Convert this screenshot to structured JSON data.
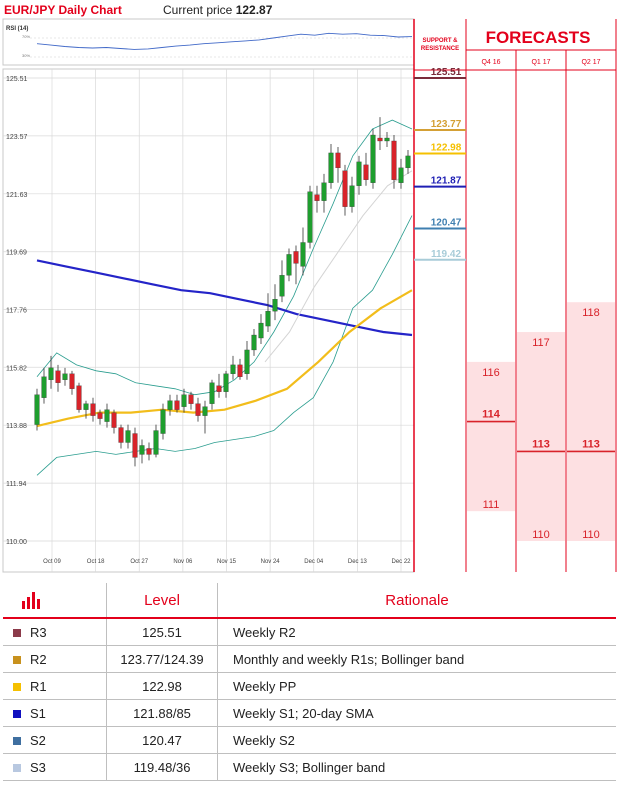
{
  "header": {
    "title": "EUR/JPY Daily Chart",
    "current_price_label": "Current price",
    "current_price": "122.87"
  },
  "rsi": {
    "label": "RSI (14)",
    "upper_label": "70%",
    "lower_label": "30%"
  },
  "panel": {
    "sr_label_1": "SUPPORT &",
    "sr_label_2": "RESISTANCE",
    "forecasts_title": "FORECASTS",
    "columns": [
      "Q4 16",
      "Q1 17",
      "Q2 17"
    ]
  },
  "levels": [
    {
      "id": "R3",
      "value": 125.51,
      "label": "125.51",
      "color": "#7b2c3b"
    },
    {
      "id": "R2",
      "value": 123.77,
      "label": "123.77",
      "color": "#d4a035"
    },
    {
      "id": "R1",
      "value": 122.98,
      "label": "122.98",
      "color": "#f5c000"
    },
    {
      "id": "S1",
      "value": 121.87,
      "label": "121.87",
      "color": "#1f1fb4"
    },
    {
      "id": "S2",
      "value": 120.47,
      "label": "120.47",
      "color": "#3f7fb0"
    },
    {
      "id": "S3",
      "value": 119.42,
      "label": "119.42",
      "color": "#a8ccd8"
    }
  ],
  "forecasts": [
    {
      "column": "Q4 16",
      "high": "116",
      "mid": "114",
      "low": "111",
      "high_v": 116.0,
      "mid_v": 114.0,
      "low_v": 111.0
    },
    {
      "column": "Q1 17",
      "high": "117",
      "mid": "113",
      "low": "110",
      "high_v": 117.0,
      "mid_v": 113.0,
      "low_v": 110.0
    },
    {
      "column": "Q2 17",
      "high": "118",
      "mid": "113",
      "low": "110",
      "high_v": 118.0,
      "mid_v": 113.0,
      "low_v": 110.0
    }
  ],
  "table": {
    "headers": {
      "level": "Level",
      "rationale": "Rationale"
    },
    "rows": [
      {
        "id": "R3",
        "level": "125.51",
        "rationale": "Weekly R2",
        "color": "#8b3a4a"
      },
      {
        "id": "R2",
        "level": "123.77/124.39",
        "rationale": "Monthly and weekly R1s; Bollinger band",
        "color": "#c8911d"
      },
      {
        "id": "R1",
        "level": "122.98",
        "rationale": "Weekly PP",
        "color": "#f5c000"
      },
      {
        "id": "S1",
        "level": "121.88/85",
        "rationale": "Weekly S1; 20-day SMA",
        "color": "#1010c0"
      },
      {
        "id": "S2",
        "level": "120.47",
        "rationale": "Weekly S2",
        "color": "#3f6fa0"
      },
      {
        "id": "S3",
        "level": "119.48/36",
        "rationale": "Weekly S3; Bollinger band",
        "color": "#b8c8e0"
      }
    ]
  },
  "chart_data": {
    "type": "candlestick",
    "x_tick_labels": [
      "Oct 09",
      "Oct 18",
      "Oct 27",
      "Nov 06",
      "Nov 15",
      "Nov 24",
      "Dec 04",
      "Dec 13",
      "Dec 22"
    ],
    "y_tick_labels": [
      "125.51",
      "123.57",
      "121.63",
      "119.69",
      "117.76",
      "115.82",
      "113.88",
      "111.94",
      "110.00"
    ],
    "ylim": [
      110.0,
      125.51
    ],
    "grid": true,
    "candles": [
      {
        "o": 113.9,
        "c": 114.9,
        "h": 115.1,
        "l": 113.7
      },
      {
        "o": 114.8,
        "c": 115.5,
        "h": 115.8,
        "l": 114.6
      },
      {
        "o": 115.4,
        "c": 115.8,
        "h": 116.2,
        "l": 115.1
      },
      {
        "o": 115.7,
        "c": 115.3,
        "h": 115.9,
        "l": 115.0
      },
      {
        "o": 115.4,
        "c": 115.6,
        "h": 115.8,
        "l": 115.2
      },
      {
        "o": 115.6,
        "c": 115.1,
        "h": 115.7,
        "l": 114.9
      },
      {
        "o": 115.2,
        "c": 114.4,
        "h": 115.3,
        "l": 114.3
      },
      {
        "o": 114.4,
        "c": 114.6,
        "h": 114.7,
        "l": 114.1
      },
      {
        "o": 114.6,
        "c": 114.2,
        "h": 114.8,
        "l": 114.0
      },
      {
        "o": 114.3,
        "c": 114.1,
        "h": 114.4,
        "l": 113.9
      },
      {
        "o": 114.0,
        "c": 114.4,
        "h": 114.6,
        "l": 113.8
      },
      {
        "o": 114.3,
        "c": 113.8,
        "h": 114.4,
        "l": 113.6
      },
      {
        "o": 113.8,
        "c": 113.3,
        "h": 113.9,
        "l": 113.1
      },
      {
        "o": 113.3,
        "c": 113.7,
        "h": 113.9,
        "l": 113.1
      },
      {
        "o": 113.6,
        "c": 112.8,
        "h": 113.8,
        "l": 112.5
      },
      {
        "o": 112.9,
        "c": 113.2,
        "h": 113.4,
        "l": 112.6
      },
      {
        "o": 113.1,
        "c": 112.9,
        "h": 113.3,
        "l": 112.7
      },
      {
        "o": 112.9,
        "c": 113.7,
        "h": 113.9,
        "l": 112.8
      },
      {
        "o": 113.6,
        "c": 114.4,
        "h": 114.6,
        "l": 113.4
      },
      {
        "o": 114.4,
        "c": 114.7,
        "h": 114.9,
        "l": 114.2
      },
      {
        "o": 114.7,
        "c": 114.4,
        "h": 114.9,
        "l": 114.3
      },
      {
        "o": 114.5,
        "c": 114.9,
        "h": 115.1,
        "l": 114.3
      },
      {
        "o": 114.9,
        "c": 114.6,
        "h": 115.0,
        "l": 114.4
      },
      {
        "o": 114.6,
        "c": 114.2,
        "h": 114.8,
        "l": 114.0
      },
      {
        "o": 114.2,
        "c": 114.5,
        "h": 114.7,
        "l": 113.6
      },
      {
        "o": 114.6,
        "c": 115.3,
        "h": 115.4,
        "l": 114.4
      },
      {
        "o": 115.2,
        "c": 115.0,
        "h": 115.6,
        "l": 114.8
      },
      {
        "o": 115.0,
        "c": 115.6,
        "h": 115.7,
        "l": 114.8
      },
      {
        "o": 115.6,
        "c": 115.9,
        "h": 116.2,
        "l": 115.4
      },
      {
        "o": 115.9,
        "c": 115.5,
        "h": 116.1,
        "l": 115.4
      },
      {
        "o": 115.6,
        "c": 116.4,
        "h": 116.7,
        "l": 115.4
      },
      {
        "o": 116.4,
        "c": 116.9,
        "h": 117.1,
        "l": 116.2
      },
      {
        "o": 116.8,
        "c": 117.3,
        "h": 117.6,
        "l": 116.6
      },
      {
        "o": 117.2,
        "c": 117.7,
        "h": 118.3,
        "l": 117.0
      },
      {
        "o": 117.7,
        "c": 118.1,
        "h": 118.6,
        "l": 117.4
      },
      {
        "o": 118.2,
        "c": 118.9,
        "h": 119.4,
        "l": 118.0
      },
      {
        "o": 118.9,
        "c": 119.6,
        "h": 119.8,
        "l": 118.7
      },
      {
        "o": 119.7,
        "c": 119.3,
        "h": 119.9,
        "l": 118.6
      },
      {
        "o": 119.2,
        "c": 120.0,
        "h": 120.5,
        "l": 118.9
      },
      {
        "o": 120.0,
        "c": 121.7,
        "h": 121.9,
        "l": 119.8
      },
      {
        "o": 121.6,
        "c": 121.4,
        "h": 121.9,
        "l": 121.0
      },
      {
        "o": 121.4,
        "c": 122.0,
        "h": 122.3,
        "l": 121.0
      },
      {
        "o": 122.0,
        "c": 123.0,
        "h": 123.3,
        "l": 121.8
      },
      {
        "o": 123.0,
        "c": 122.5,
        "h": 123.2,
        "l": 122.0
      },
      {
        "o": 122.4,
        "c": 121.2,
        "h": 122.6,
        "l": 120.9
      },
      {
        "o": 121.2,
        "c": 121.9,
        "h": 122.2,
        "l": 121.0
      },
      {
        "o": 121.9,
        "c": 122.7,
        "h": 122.9,
        "l": 121.6
      },
      {
        "o": 122.6,
        "c": 122.1,
        "h": 123.0,
        "l": 121.9
      },
      {
        "o": 122.0,
        "c": 123.6,
        "h": 123.8,
        "l": 121.8
      },
      {
        "o": 123.5,
        "c": 123.4,
        "h": 124.2,
        "l": 123.1
      },
      {
        "o": 123.4,
        "c": 123.5,
        "h": 123.7,
        "l": 123.2
      },
      {
        "o": 123.4,
        "c": 122.1,
        "h": 123.6,
        "l": 121.8
      },
      {
        "o": 122.0,
        "c": 122.5,
        "h": 122.8,
        "l": 121.8
      },
      {
        "o": 122.5,
        "c": 122.9,
        "h": 123.1,
        "l": 122.3
      }
    ],
    "sma200": [
      119.4,
      119.2,
      119.0,
      118.8,
      118.6,
      118.4,
      118.3,
      118.1,
      117.9,
      117.6,
      117.4,
      117.2,
      117.0,
      116.9
    ],
    "sma_yellow": [
      113.85,
      114.1,
      114.3,
      114.3,
      114.4,
      114.3,
      114.4,
      114.7,
      115.1,
      116.0,
      117.0,
      117.8,
      118.4
    ],
    "bollinger_upper": [
      115.5,
      116.3,
      115.9,
      115.7,
      115.6,
      115.3,
      115.2,
      115.1,
      114.9,
      115.0,
      115.4,
      116.0,
      117.0,
      118.2,
      119.8,
      121.3,
      122.9,
      123.8,
      124.1,
      123.8
    ],
    "bollinger_lower": [
      112.2,
      112.8,
      112.9,
      113.0,
      112.9,
      113.0,
      113.1,
      113.0,
      113.1,
      113.3,
      113.4,
      113.5,
      113.7,
      114.3,
      114.8,
      116.0,
      117.8,
      118.4,
      119.6,
      120.9
    ],
    "sma20": [
      116.0,
      117.0,
      118.5,
      119.7,
      120.9,
      121.9,
      122.4
    ],
    "rsi": [
      58,
      55,
      52,
      50,
      49,
      50,
      48,
      46,
      47,
      50,
      53,
      55,
      58,
      60,
      62,
      64,
      66,
      70,
      74,
      78,
      76,
      80,
      78,
      79,
      76,
      75,
      72,
      73
    ]
  }
}
